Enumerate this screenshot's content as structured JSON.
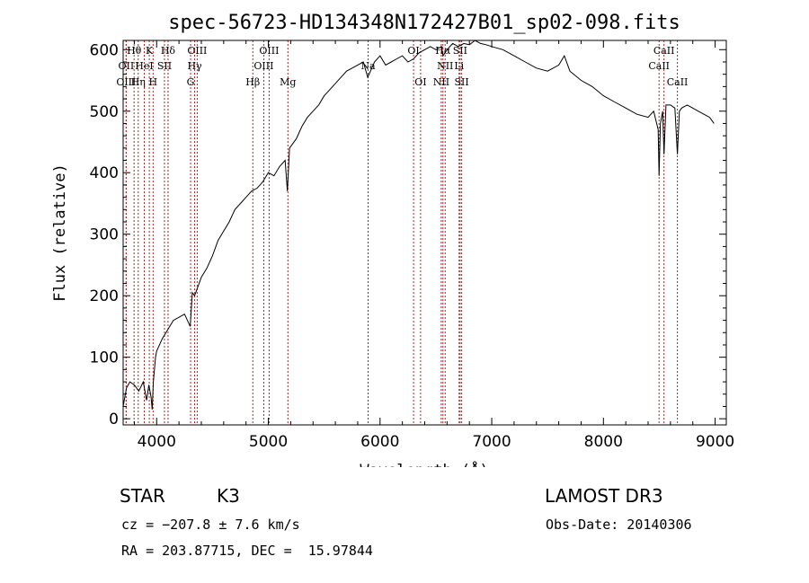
{
  "chart_data": {
    "type": "line",
    "title": "spec-56723-HD134348N172427B01_sp02-098.fits",
    "xlabel": "Wavelength (Å)",
    "ylabel": "Flux (relative)",
    "xlim": [
      3700,
      9100
    ],
    "ylim": [
      -10,
      615
    ],
    "xticks": [
      4000,
      5000,
      6000,
      7000,
      8000,
      9000
    ],
    "yticks": [
      0,
      100,
      200,
      300,
      400,
      500,
      600
    ],
    "series": [
      {
        "name": "flux",
        "x": [
          3700,
          3730,
          3760,
          3800,
          3840,
          3880,
          3910,
          3930,
          3950,
          3960,
          3970,
          3990,
          4000,
          4050,
          4100,
          4150,
          4200,
          4250,
          4300,
          4320,
          4340,
          4400,
          4450,
          4500,
          4550,
          4600,
          4650,
          4700,
          4750,
          4800,
          4850,
          4900,
          4950,
          5000,
          5050,
          5100,
          5150,
          5170,
          5190,
          5250,
          5300,
          5350,
          5400,
          5450,
          5500,
          5550,
          5600,
          5650,
          5700,
          5750,
          5800,
          5850,
          5890,
          5950,
          6000,
          6050,
          6100,
          6150,
          6200,
          6250,
          6300,
          6350,
          6400,
          6450,
          6500,
          6550,
          6563,
          6600,
          6650,
          6700,
          6750,
          6800,
          6850,
          6900,
          6950,
          7000,
          7100,
          7200,
          7300,
          7400,
          7500,
          7600,
          7650,
          7700,
          7800,
          7900,
          8000,
          8100,
          8200,
          8300,
          8400,
          8450,
          8490,
          8498,
          8510,
          8530,
          8542,
          8560,
          8600,
          8640,
          8650,
          8662,
          8680,
          8700,
          8750,
          8800,
          8850,
          8900,
          8950,
          8990
        ],
        "y": [
          20,
          50,
          60,
          55,
          45,
          60,
          30,
          55,
          35,
          15,
          60,
          100,
          110,
          130,
          145,
          160,
          165,
          170,
          150,
          205,
          200,
          230,
          245,
          265,
          290,
          305,
          320,
          340,
          350,
          360,
          370,
          375,
          385,
          400,
          395,
          410,
          420,
          370,
          440,
          455,
          475,
          490,
          500,
          510,
          525,
          535,
          545,
          555,
          565,
          570,
          575,
          580,
          555,
          580,
          590,
          575,
          580,
          585,
          590,
          580,
          585,
          595,
          600,
          605,
          600,
          605,
          590,
          600,
          610,
          605,
          610,
          608,
          615,
          610,
          608,
          605,
          600,
          590,
          580,
          570,
          565,
          575,
          590,
          565,
          550,
          540,
          525,
          515,
          505,
          495,
          490,
          500,
          470,
          395,
          480,
          500,
          430,
          510,
          510,
          505,
          470,
          430,
          500,
          505,
          510,
          505,
          500,
          495,
          490,
          480
        ]
      }
    ],
    "lines": [
      {
        "label": "Hθ",
        "x": 3798,
        "row": 0
      },
      {
        "label": "K",
        "x": 3934,
        "row": 0
      },
      {
        "label": "Hδ",
        "x": 4102,
        "row": 0
      },
      {
        "label": "OIII",
        "x": 4363,
        "row": 0
      },
      {
        "label": "OIII",
        "x": 5007,
        "row": 0
      },
      {
        "label": "OI",
        "x": 6300,
        "row": 0
      },
      {
        "label": "Hα",
        "x": 6563,
        "row": 0
      },
      {
        "label": "SII",
        "x": 6717,
        "row": 0
      },
      {
        "label": "CaII",
        "x": 8542,
        "row": 0
      },
      {
        "label": "OII",
        "x": 3727,
        "row": 1
      },
      {
        "label": "HeI",
        "x": 3889,
        "row": 1
      },
      {
        "label": "SII",
        "x": 4070,
        "row": 1
      },
      {
        "label": "Hγ",
        "x": 4340,
        "row": 1
      },
      {
        "label": "OIII",
        "x": 4959,
        "row": 1
      },
      {
        "label": "Na",
        "x": 5893,
        "row": 1
      },
      {
        "label": "NII",
        "x": 6583,
        "row": 1
      },
      {
        "label": "Li",
        "x": 6708,
        "row": 1
      },
      {
        "label": "CaII",
        "x": 8498,
        "row": 1
      },
      {
        "label": "OIII",
        "x": 3727,
        "row": 2
      },
      {
        "label": "Hη",
        "x": 3835,
        "row": 2
      },
      {
        "label": "H",
        "x": 3968,
        "row": 2
      },
      {
        "label": "G",
        "x": 4304,
        "row": 2
      },
      {
        "label": "Hβ",
        "x": 4861,
        "row": 2
      },
      {
        "label": "Mg",
        "x": 5175,
        "row": 2
      },
      {
        "label": "OI",
        "x": 6363,
        "row": 2
      },
      {
        "label": "NII",
        "x": 6548,
        "row": 2
      },
      {
        "label": "SII",
        "x": 6731,
        "row": 2
      },
      {
        "label": "CaII",
        "x": 8662,
        "row": 2
      }
    ]
  },
  "info": {
    "class_label": "STAR",
    "subclass": "K3",
    "survey": "LAMOST DR3",
    "cz": "cz = −207.8 ± 7.6 km/s",
    "obs_date": "Obs-Date: 20140306",
    "radec": "RA = 203.87715, DEC =  15.97844"
  },
  "colors": {
    "line": "#000000",
    "marker": "#b22222"
  }
}
